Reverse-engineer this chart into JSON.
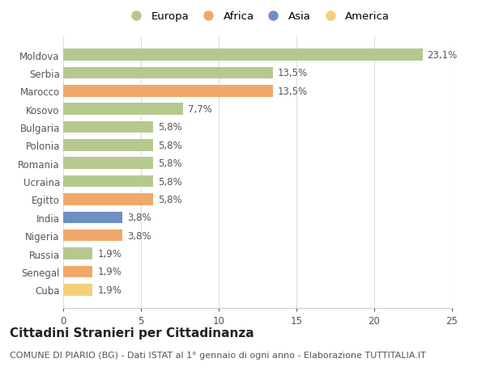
{
  "categories": [
    "Cuba",
    "Senegal",
    "Russia",
    "Nigeria",
    "India",
    "Egitto",
    "Ucraina",
    "Romania",
    "Polonia",
    "Bulgaria",
    "Kosovo",
    "Marocco",
    "Serbia",
    "Moldova"
  ],
  "values": [
    1.9,
    1.9,
    1.9,
    3.8,
    3.8,
    5.8,
    5.8,
    5.8,
    5.8,
    5.8,
    7.7,
    13.5,
    13.5,
    23.1
  ],
  "labels": [
    "1,9%",
    "1,9%",
    "1,9%",
    "3,8%",
    "3,8%",
    "5,8%",
    "5,8%",
    "5,8%",
    "5,8%",
    "5,8%",
    "7,7%",
    "13,5%",
    "13,5%",
    "23,1%"
  ],
  "colors": [
    "#f5d07a",
    "#f0a86b",
    "#b5c98e",
    "#f0a86b",
    "#6e8fc4",
    "#f0a86b",
    "#b5c98e",
    "#b5c98e",
    "#b5c98e",
    "#b5c98e",
    "#b5c98e",
    "#f0a86b",
    "#b5c98e",
    "#b5c98e"
  ],
  "legend_labels": [
    "Europa",
    "Africa",
    "Asia",
    "America"
  ],
  "legend_colors": [
    "#b5c98e",
    "#f0a86b",
    "#6e8fc4",
    "#f5d07a"
  ],
  "title": "Cittadini Stranieri per Cittadinanza",
  "subtitle": "COMUNE DI PIARIO (BG) - Dati ISTAT al 1° gennaio di ogni anno - Elaborazione TUTTITALIA.IT",
  "xlim": [
    0,
    25
  ],
  "xticks": [
    0,
    5,
    10,
    15,
    20,
    25
  ],
  "bg_color": "#ffffff",
  "grid_color": "#dddddd",
  "bar_height": 0.65,
  "title_fontsize": 11,
  "subtitle_fontsize": 8,
  "label_fontsize": 8.5,
  "tick_fontsize": 8.5,
  "legend_fontsize": 9.5
}
